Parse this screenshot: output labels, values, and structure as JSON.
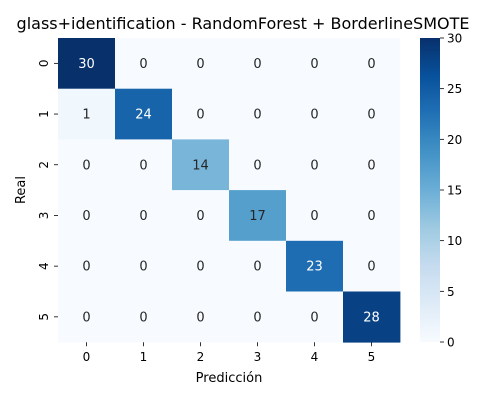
{
  "chart_data": {
    "type": "heatmap",
    "title": "glass+identification - RandomForest + BorderlineSMOTE",
    "xlabel": "Predicción",
    "ylabel": "Real",
    "x_categories": [
      "0",
      "1",
      "2",
      "3",
      "4",
      "5"
    ],
    "y_categories": [
      "0",
      "1",
      "2",
      "3",
      "4",
      "5"
    ],
    "values": [
      [
        30,
        0,
        0,
        0,
        0,
        0
      ],
      [
        1,
        24,
        0,
        0,
        0,
        0
      ],
      [
        0,
        0,
        14,
        0,
        0,
        0
      ],
      [
        0,
        0,
        0,
        17,
        0,
        0
      ],
      [
        0,
        0,
        0,
        0,
        23,
        0
      ],
      [
        0,
        0,
        0,
        0,
        0,
        28
      ]
    ],
    "colormap": "Blues",
    "color_low": "#f7fbff",
    "color_high": "#08306b",
    "vmin": 0,
    "vmax": 30,
    "colorbar_ticks": [
      0,
      5,
      10,
      15,
      20,
      25,
      30
    ],
    "annotations": true
  }
}
